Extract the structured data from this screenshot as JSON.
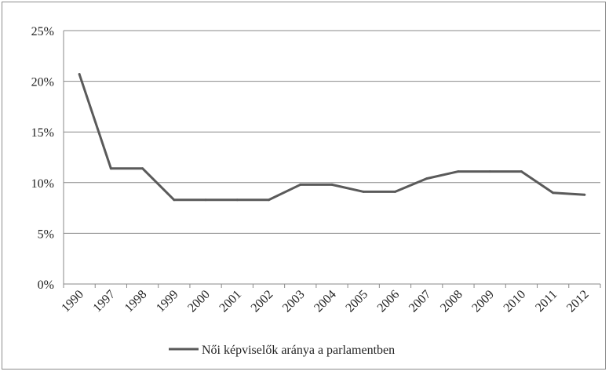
{
  "chart_data": {
    "type": "line",
    "categories": [
      "1990",
      "1997",
      "1998",
      "1999",
      "2000",
      "2001",
      "2002",
      "2003",
      "2004",
      "2005",
      "2006",
      "2007",
      "2008",
      "2009",
      "2010",
      "2011",
      "2012"
    ],
    "series": [
      {
        "name": "Női képviselők aránya a parlamentben",
        "values": [
          20.7,
          11.4,
          11.4,
          8.3,
          8.3,
          8.3,
          8.3,
          9.8,
          9.8,
          9.1,
          9.1,
          10.4,
          11.1,
          11.1,
          11.1,
          9.0,
          8.8
        ],
        "color": "#5a5a5a"
      }
    ],
    "y_ticks": [
      "0%",
      "5%",
      "10%",
      "15%",
      "20%",
      "25%"
    ],
    "ylim": [
      0,
      25
    ],
    "y_unit": "percent",
    "grid": true,
    "legend_position": "bottom"
  }
}
